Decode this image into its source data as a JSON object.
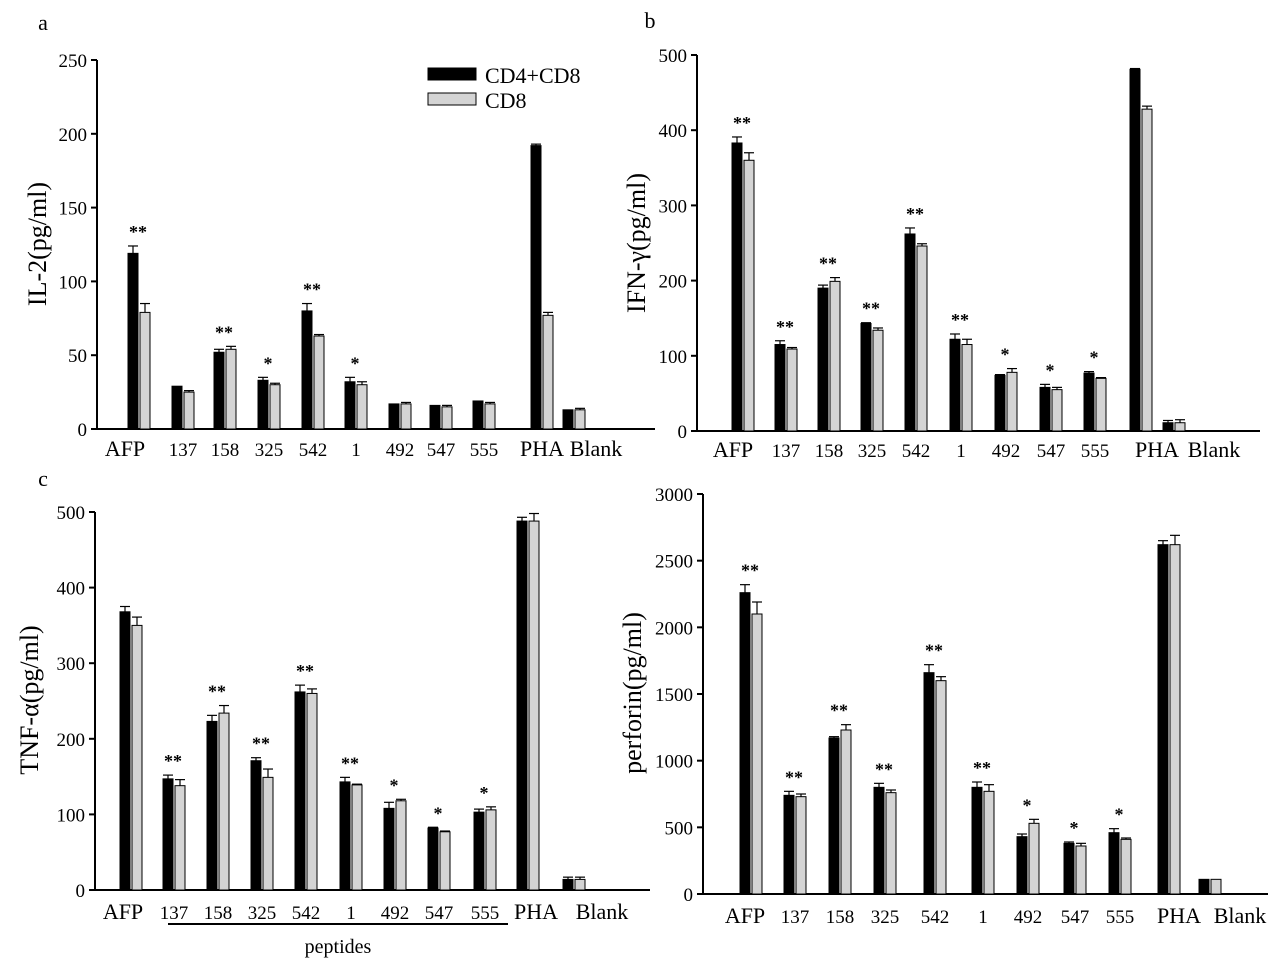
{
  "legend": {
    "items": [
      {
        "label": "CD4+CD8",
        "color": "#000000"
      },
      {
        "label": "CD8",
        "color": "#d4d4d4"
      }
    ],
    "placement": "top-right of panel a"
  },
  "footer": {
    "group_label": "peptides"
  },
  "chart_data": [
    {
      "type": "bar",
      "panel_label": "a",
      "ylabel": "IL-2(pg/ml)",
      "ylim": [
        0,
        250
      ],
      "yticks": [
        "0",
        "50",
        "100",
        "150",
        "200",
        "250"
      ],
      "categories": [
        "AFP",
        "137",
        "158",
        "325",
        "542",
        "1",
        "492",
        "547",
        "555",
        "PHA",
        "Blank"
      ],
      "series": [
        {
          "name": "CD4+CD8",
          "values": [
            119,
            29,
            52,
            33,
            80,
            32,
            17,
            16,
            19,
            192,
            13
          ],
          "errors": [
            5,
            0,
            2,
            2,
            5,
            3,
            0,
            0,
            0,
            1,
            0
          ]
        },
        {
          "name": "CD8",
          "values": [
            79,
            25,
            54,
            30,
            63,
            30,
            17,
            15,
            17,
            77,
            13
          ],
          "errors": [
            6,
            1,
            2,
            1,
            1,
            2,
            1,
            1,
            1,
            2,
            1
          ]
        }
      ],
      "significance": [
        "**",
        "",
        "**",
        "*",
        "**",
        "*",
        "",
        "",
        "",
        "",
        ""
      ]
    },
    {
      "type": "bar",
      "panel_label": "b",
      "ylabel": "IFN-γ(pg/ml)",
      "ylim": [
        0,
        500
      ],
      "yticks": [
        "0",
        "100",
        "200",
        "300",
        "400",
        "500"
      ],
      "categories": [
        "AFP",
        "137",
        "158",
        "325",
        "542",
        "1",
        "492",
        "547",
        "555",
        "PHA",
        "Blank"
      ],
      "series": [
        {
          "name": "CD4+CD8",
          "values": [
            383,
            115,
            190,
            143,
            262,
            122,
            74,
            58,
            77,
            481,
            11
          ],
          "errors": [
            8,
            5,
            4,
            1,
            8,
            7,
            1,
            4,
            2,
            1,
            3
          ]
        },
        {
          "name": "CD8",
          "values": [
            360,
            109,
            199,
            134,
            246,
            115,
            78,
            55,
            70,
            428,
            11
          ],
          "errors": [
            10,
            2,
            5,
            3,
            3,
            7,
            5,
            3,
            1,
            4,
            4
          ]
        }
      ],
      "significance": [
        "**",
        "**",
        "**",
        "**",
        "**",
        "**",
        "*",
        "*",
        "*",
        "",
        ""
      ]
    },
    {
      "type": "bar",
      "panel_label": "c",
      "ylabel": "TNF-α(pg/ml)",
      "ylim": [
        0,
        500
      ],
      "yticks": [
        "0",
        "100",
        "200",
        "300",
        "400",
        "500"
      ],
      "categories": [
        "AFP",
        "137",
        "158",
        "325",
        "542",
        "1",
        "492",
        "547",
        "555",
        "PHA",
        "Blank"
      ],
      "series": [
        {
          "name": "CD4+CD8",
          "values": [
            368,
            147,
            223,
            171,
            262,
            143,
            108,
            82,
            103,
            488,
            14
          ],
          "errors": [
            7,
            5,
            8,
            4,
            9,
            6,
            8,
            1,
            4,
            5,
            3
          ]
        },
        {
          "name": "CD8",
          "values": [
            350,
            138,
            234,
            149,
            260,
            139,
            118,
            77,
            106,
            488,
            14
          ],
          "errors": [
            11,
            8,
            10,
            11,
            6,
            1,
            2,
            1,
            4,
            10,
            3
          ]
        }
      ],
      "significance": [
        "",
        "**",
        "**",
        "**",
        "**",
        "**",
        "*",
        "*",
        "*",
        "",
        ""
      ]
    },
    {
      "type": "bar",
      "panel_label": "",
      "ylabel": "perforin(pg/ml)",
      "ylim": [
        0,
        3000
      ],
      "yticks": [
        "0",
        "500",
        "1000",
        "1500",
        "2000",
        "2500",
        "3000"
      ],
      "categories": [
        "AFP",
        "137",
        "158",
        "325",
        "542",
        "1",
        "492",
        "547",
        "555",
        "PHA",
        "Blank"
      ],
      "series": [
        {
          "name": "CD4+CD8",
          "values": [
            2260,
            740,
            1170,
            800,
            1660,
            800,
            430,
            380,
            460,
            2620,
            110
          ],
          "errors": [
            60,
            30,
            10,
            30,
            60,
            40,
            20,
            10,
            30,
            30,
            0
          ]
        },
        {
          "name": "CD8",
          "values": [
            2100,
            730,
            1230,
            760,
            1600,
            770,
            530,
            360,
            410,
            2620,
            110
          ],
          "errors": [
            90,
            20,
            40,
            20,
            30,
            50,
            30,
            20,
            10,
            70,
            0
          ]
        }
      ],
      "significance": [
        "**",
        "**",
        "**",
        "**",
        "**",
        "**",
        "*",
        "*",
        "*",
        "",
        ""
      ]
    }
  ]
}
